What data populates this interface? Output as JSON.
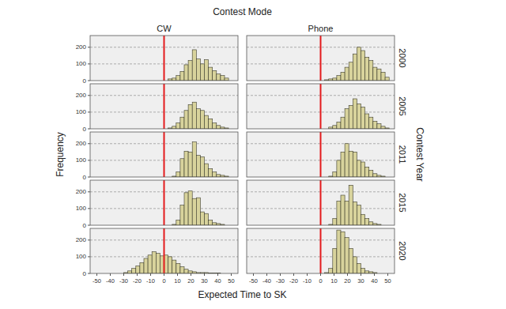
{
  "chart_data": {
    "type": "histogram",
    "title": "Contest Mode",
    "x_label": "Expected Time to SK",
    "y_label": "Frequency",
    "row_title": "Contest Year",
    "columns": [
      "CW",
      "Phone"
    ],
    "rows": [
      "2000",
      "2005",
      "2011",
      "2015",
      "2020"
    ],
    "bins": [
      -33,
      -30,
      -27,
      -24,
      -21,
      -18,
      -15,
      -12,
      -9,
      -6,
      -3,
      0,
      3,
      6,
      9,
      12,
      15,
      18,
      21,
      24,
      27,
      30,
      33,
      36,
      39,
      42,
      45,
      48,
      51
    ],
    "panels": [
      [
        [
          0,
          0,
          0,
          0,
          0,
          0,
          0,
          0,
          0,
          0,
          0,
          0,
          10,
          15,
          30,
          55,
          95,
          120,
          185,
          130,
          100,
          125,
          80,
          60,
          40,
          30,
          15,
          0
        ],
        [
          0,
          0,
          0,
          0,
          0,
          0,
          0,
          0,
          0,
          0,
          0,
          0,
          5,
          10,
          15,
          30,
          50,
          80,
          110,
          160,
          200,
          180,
          140,
          120,
          80,
          70,
          50,
          20
        ]
      ],
      [
        [
          0,
          0,
          0,
          0,
          0,
          0,
          0,
          0,
          0,
          0,
          0,
          0,
          5,
          15,
          35,
          70,
          110,
          145,
          160,
          120,
          110,
          80,
          60,
          35,
          20,
          10,
          5,
          0
        ],
        [
          0,
          0,
          0,
          0,
          0,
          0,
          0,
          0,
          0,
          0,
          0,
          0,
          0,
          10,
          20,
          40,
          70,
          120,
          140,
          180,
          150,
          130,
          90,
          70,
          45,
          30,
          15,
          5
        ]
      ],
      [
        [
          0,
          0,
          0,
          0,
          0,
          0,
          0,
          0,
          0,
          0,
          0,
          0,
          0,
          5,
          30,
          110,
          155,
          150,
          210,
          130,
          120,
          80,
          50,
          30,
          15,
          10,
          5,
          0
        ],
        [
          0,
          0,
          0,
          0,
          0,
          0,
          0,
          0,
          0,
          0,
          0,
          0,
          0,
          5,
          30,
          100,
          150,
          200,
          155,
          150,
          100,
          90,
          60,
          40,
          20,
          10,
          5,
          0
        ]
      ],
      [
        [
          0,
          0,
          0,
          0,
          0,
          0,
          0,
          0,
          0,
          0,
          0,
          0,
          0,
          5,
          30,
          120,
          195,
          205,
          160,
          165,
          80,
          70,
          30,
          15,
          10,
          5,
          0,
          0
        ],
        [
          0,
          0,
          0,
          0,
          0,
          0,
          0,
          0,
          0,
          0,
          0,
          0,
          0,
          5,
          40,
          145,
          180,
          145,
          240,
          140,
          120,
          65,
          40,
          20,
          10,
          5,
          0,
          0
        ]
      ],
      [
        [
          0,
          5,
          15,
          30,
          45,
          65,
          90,
          110,
          130,
          120,
          105,
          110,
          100,
          80,
          60,
          40,
          25,
          15,
          10,
          5,
          5,
          5,
          3,
          2,
          2,
          0,
          0,
          0
        ],
        [
          0,
          0,
          0,
          0,
          0,
          0,
          0,
          0,
          0,
          0,
          0,
          0,
          5,
          30,
          150,
          260,
          250,
          215,
          150,
          100,
          60,
          30,
          15,
          10,
          5,
          0,
          0,
          0
        ]
      ]
    ],
    "color": "#d8d39c",
    "reference_x": 0,
    "xlim": [
      -55,
      55
    ],
    "xticks": [
      -50,
      -40,
      -30,
      -20,
      -10,
      0,
      10,
      20,
      30,
      40,
      50
    ],
    "ylim": [
      0,
      270
    ],
    "yticks": [
      0,
      100,
      200
    ],
    "grid": true
  }
}
